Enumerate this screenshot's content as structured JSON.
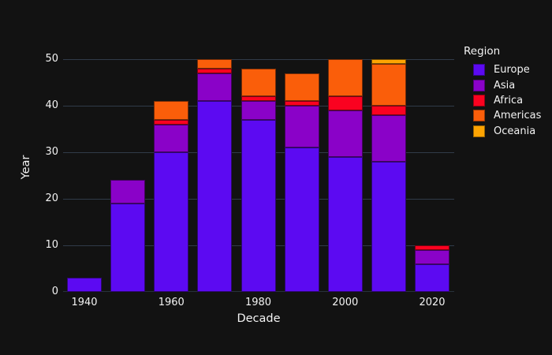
{
  "page": {
    "background": "#121212"
  },
  "colors": {
    "grid": "#303b49",
    "axis_line": "#27313c",
    "text": "#f3f3f3",
    "segment_stroke": "rgba(10,5,5,0.55)"
  },
  "chart_data": {
    "type": "bar",
    "stacked": true,
    "title": "",
    "xlabel": "Decade",
    "ylabel": "Year",
    "legend_title": "Region",
    "legend_position": "right",
    "grid": true,
    "ylim": [
      0,
      50
    ],
    "y_ticks": [
      0,
      10,
      20,
      30,
      40,
      50
    ],
    "categories": [
      "1940",
      "1950",
      "1960",
      "1970",
      "1980",
      "1990",
      "2000",
      "2010",
      "2020"
    ],
    "x_tick_indices": [
      0,
      2,
      4,
      6,
      8
    ],
    "x_tick_labels": [
      "1940",
      "1960",
      "1980",
      "2000",
      "2020"
    ],
    "series": [
      {
        "name": "Europe",
        "color": "#5c0af2",
        "values": [
          3,
          19,
          30,
          41,
          37,
          31,
          29,
          28,
          6
        ]
      },
      {
        "name": "Asia",
        "color": "#8a02c8",
        "values": [
          0,
          5,
          6,
          6,
          4,
          9,
          10,
          10,
          3
        ]
      },
      {
        "name": "Africa",
        "color": "#fa0220",
        "values": [
          0,
          0,
          1,
          1,
          1,
          1,
          3,
          2,
          1
        ]
      },
      {
        "name": "Americas",
        "color": "#fa5e0a",
        "values": [
          0,
          0,
          4,
          2,
          6,
          6,
          8,
          9,
          0
        ]
      },
      {
        "name": "Oceania",
        "color": "#fda402",
        "values": [
          0,
          0,
          0,
          0,
          0,
          0,
          0,
          1,
          0
        ]
      }
    ],
    "totals": [
      3,
      24,
      41,
      50,
      48,
      47,
      50,
      50,
      10
    ]
  }
}
